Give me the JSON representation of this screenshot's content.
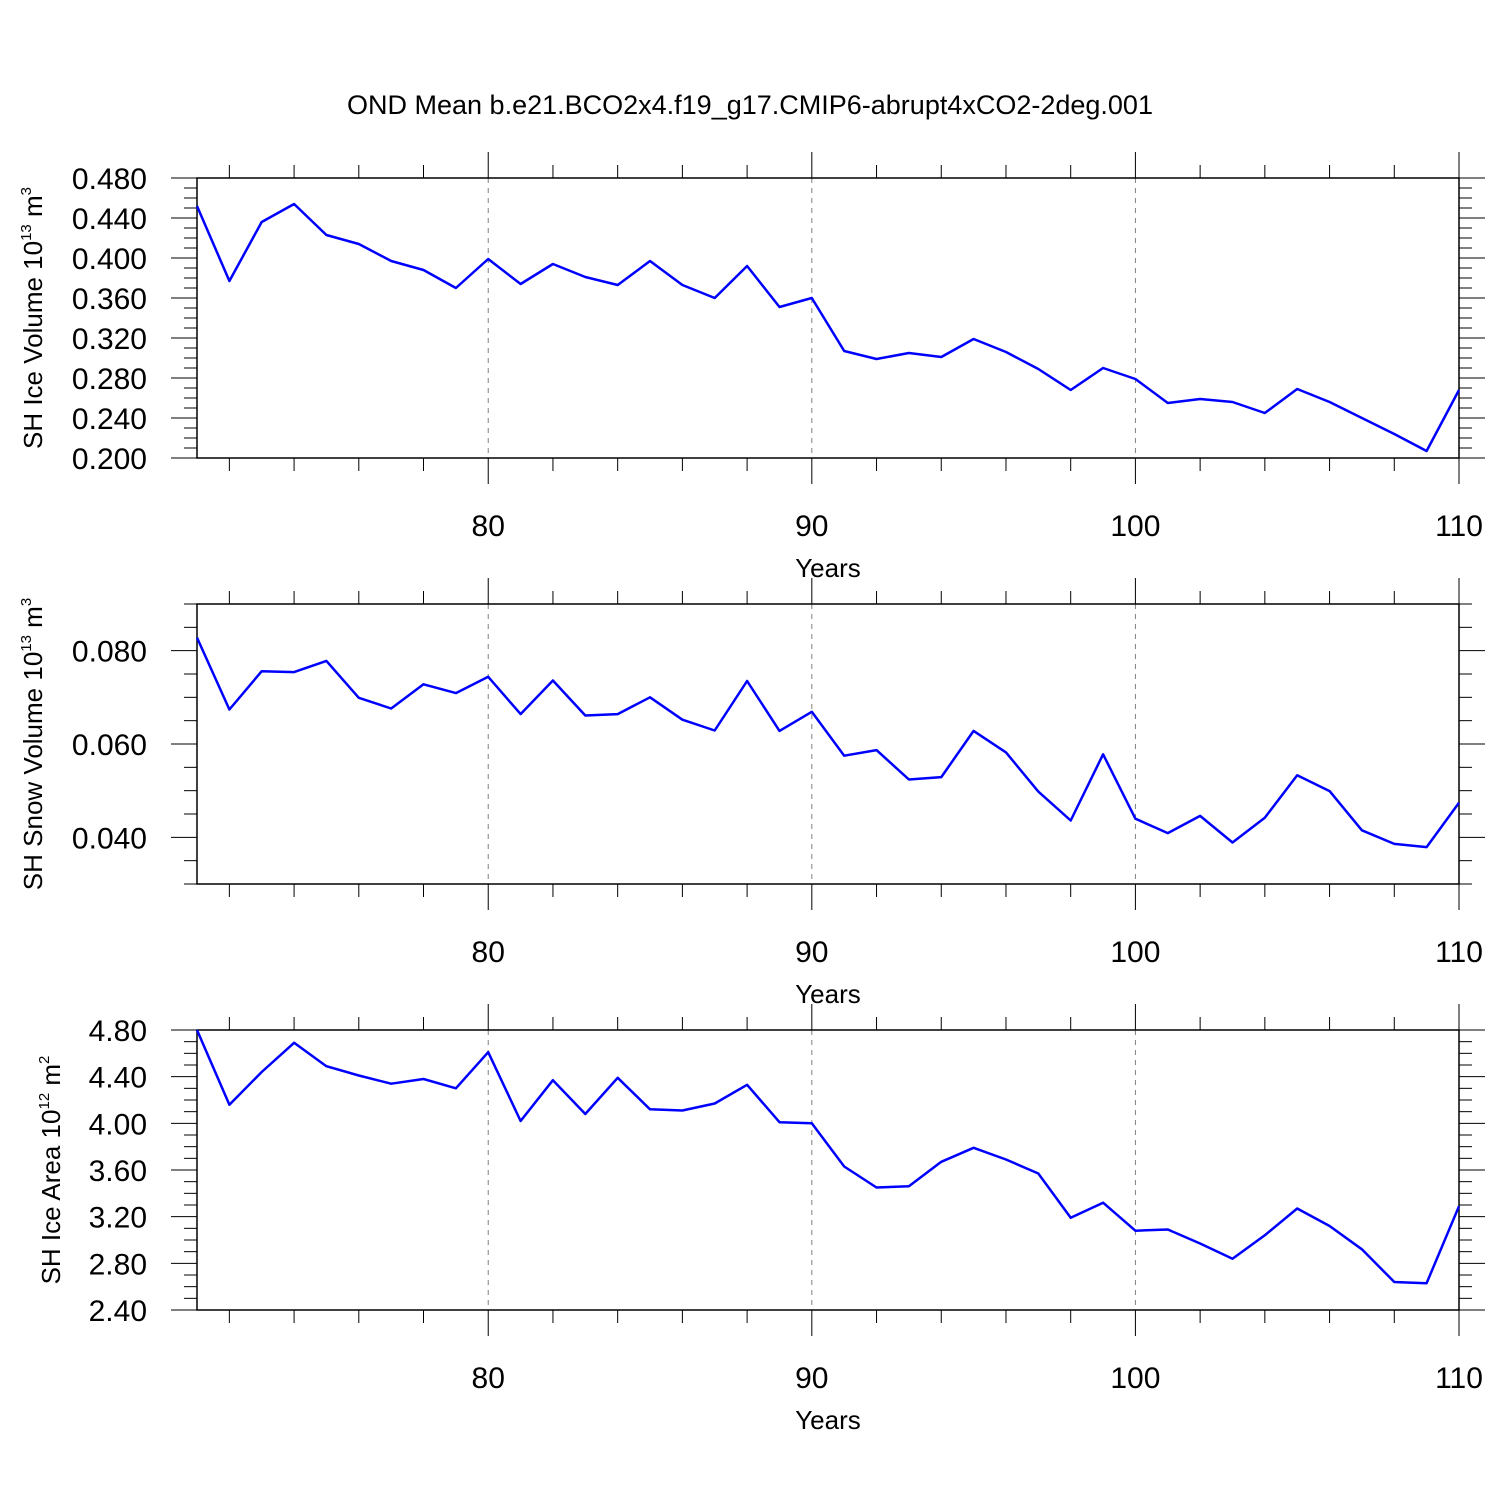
{
  "figure": {
    "title": "OND Mean b.e21.BCO2x4.f19_g17.CMIP6-abrupt4xCO2-2deg.001",
    "line_color": "#0000ff",
    "grid_color": "#808080"
  },
  "chart_data": [
    {
      "type": "line",
      "title": "",
      "xlabel": "Years",
      "ylabel": {
        "main": "SH Ice Volume 10",
        "sup": "13",
        "unit": " m",
        "unit_sup": "3"
      },
      "xlim": [
        71,
        110
      ],
      "ylim": [
        0.2,
        0.48
      ],
      "xticks": [
        80,
        90,
        100,
        110
      ],
      "yticks": [
        0.2,
        0.24,
        0.28,
        0.32,
        0.36,
        0.4,
        0.44,
        0.48
      ],
      "ytick_labels": [
        "0.200",
        "0.240",
        "0.280",
        "0.320",
        "0.360",
        "0.400",
        "0.440",
        "0.480"
      ],
      "yminor": 0.01,
      "vgrid": [
        80,
        90,
        100
      ],
      "series": [
        {
          "x": [
            71,
            72,
            73,
            74,
            75,
            76,
            77,
            78,
            79,
            80,
            81,
            82,
            83,
            84,
            85,
            86,
            87,
            88,
            89,
            90,
            91,
            92,
            93,
            94,
            95,
            96,
            97,
            98,
            99,
            100,
            101,
            102,
            103,
            104,
            105,
            106,
            107,
            108,
            109,
            110
          ],
          "values": [
            0.452,
            0.377,
            0.436,
            0.454,
            0.423,
            0.414,
            0.397,
            0.388,
            0.37,
            0.399,
            0.374,
            0.394,
            0.381,
            0.373,
            0.397,
            0.373,
            0.36,
            0.392,
            0.351,
            0.36,
            0.307,
            0.299,
            0.305,
            0.301,
            0.319,
            0.306,
            0.289,
            0.268,
            0.29,
            0.279,
            0.255,
            0.259,
            0.256,
            0.245,
            0.269,
            0.256,
            0.24,
            0.224,
            0.207,
            0.268
          ]
        }
      ]
    },
    {
      "type": "line",
      "title": "",
      "xlabel": "Years",
      "ylabel": {
        "main": "SH Snow Volume 10",
        "sup": "13",
        "unit": " m",
        "unit_sup": "3"
      },
      "xlim": [
        71,
        110
      ],
      "ylim": [
        0.03,
        0.09
      ],
      "xticks": [
        80,
        90,
        100,
        110
      ],
      "yticks": [
        0.04,
        0.06,
        0.08
      ],
      "ytick_labels": [
        "0.040",
        "0.060",
        "0.080"
      ],
      "yminor": 0.005,
      "vgrid": [
        80,
        90,
        100
      ],
      "series": [
        {
          "x": [
            71,
            72,
            73,
            74,
            75,
            76,
            77,
            78,
            79,
            80,
            81,
            82,
            83,
            84,
            85,
            86,
            87,
            88,
            89,
            90,
            91,
            92,
            93,
            94,
            95,
            96,
            97,
            98,
            99,
            100,
            101,
            102,
            103,
            104,
            105,
            106,
            107,
            108,
            109,
            110
          ],
          "values": [
            0.0828,
            0.0674,
            0.0756,
            0.0754,
            0.0778,
            0.0699,
            0.0676,
            0.0728,
            0.0709,
            0.0744,
            0.0664,
            0.0736,
            0.0661,
            0.0664,
            0.07,
            0.0652,
            0.0629,
            0.0735,
            0.0628,
            0.0669,
            0.0575,
            0.0587,
            0.0524,
            0.0529,
            0.0628,
            0.0582,
            0.0498,
            0.0436,
            0.0578,
            0.044,
            0.0409,
            0.0446,
            0.0389,
            0.0442,
            0.0533,
            0.0499,
            0.0415,
            0.0386,
            0.0379,
            0.0474
          ]
        }
      ]
    },
    {
      "type": "line",
      "title": "",
      "xlabel": "Years",
      "ylabel": {
        "main": "SH Ice Area 10",
        "sup": "12",
        "unit": " m",
        "unit_sup": "2"
      },
      "xlim": [
        71,
        110
      ],
      "ylim": [
        2.4,
        4.8
      ],
      "xticks": [
        80,
        90,
        100,
        110
      ],
      "yticks": [
        2.4,
        2.8,
        3.2,
        3.6,
        4.0,
        4.4,
        4.8
      ],
      "ytick_labels": [
        "2.40",
        "2.80",
        "3.20",
        "3.60",
        "4.00",
        "4.40",
        "4.80"
      ],
      "yminor": 0.1,
      "vgrid": [
        80,
        90,
        100
      ],
      "series": [
        {
          "x": [
            71,
            72,
            73,
            74,
            75,
            76,
            77,
            78,
            79,
            80,
            81,
            82,
            83,
            84,
            85,
            86,
            87,
            88,
            89,
            90,
            91,
            92,
            93,
            94,
            95,
            96,
            97,
            98,
            99,
            100,
            101,
            102,
            103,
            104,
            105,
            106,
            107,
            108,
            109,
            110
          ],
          "values": [
            4.8,
            4.16,
            4.44,
            4.69,
            4.49,
            4.41,
            4.34,
            4.38,
            4.3,
            4.61,
            4.02,
            4.37,
            4.08,
            4.39,
            4.12,
            4.11,
            4.17,
            4.33,
            4.01,
            4.0,
            3.63,
            3.45,
            3.46,
            3.67,
            3.79,
            3.69,
            3.57,
            3.19,
            3.32,
            3.08,
            3.09,
            2.97,
            2.84,
            3.04,
            3.27,
            3.12,
            2.92,
            2.64,
            2.63,
            3.29
          ]
        }
      ]
    }
  ]
}
